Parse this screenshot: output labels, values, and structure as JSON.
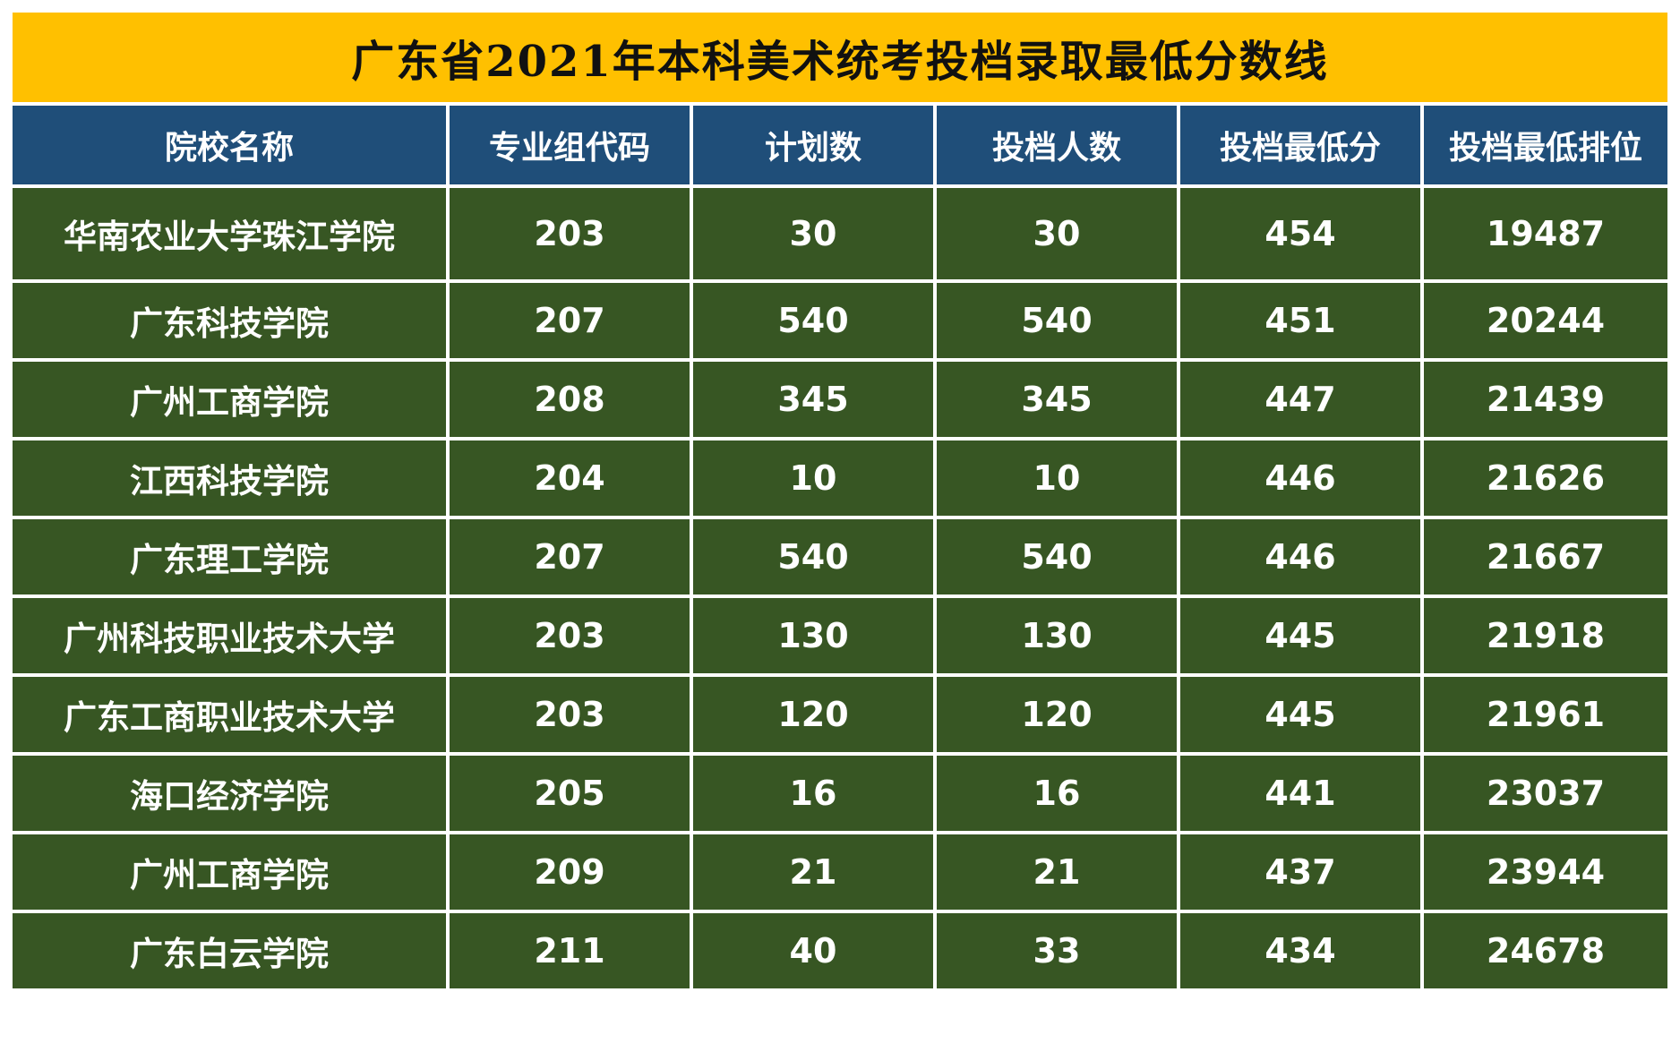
{
  "title": "广东省2021年本科美术统考投档录取最低分数线",
  "headers": [
    "院校名称",
    "专业组代码",
    "计划数",
    "投档人数",
    "投档最低分",
    "投档最低排位"
  ],
  "rows": [
    [
      "华南农业大学珠江学院",
      "203",
      "30",
      "30",
      "454",
      "19487"
    ],
    [
      "广东科技学院",
      "207",
      "540",
      "540",
      "451",
      "20244"
    ],
    [
      "广州工商学院",
      "208",
      "345",
      "345",
      "447",
      "21439"
    ],
    [
      "江西科技学院",
      "204",
      "10",
      "10",
      "446",
      "21626"
    ],
    [
      "广东理工学院",
      "207",
      "540",
      "540",
      "446",
      "21667"
    ],
    [
      "广州科技职业技术大学",
      "203",
      "130",
      "130",
      "445",
      "21918"
    ],
    [
      "广东工商职业技术大学",
      "203",
      "120",
      "120",
      "445",
      "21961"
    ],
    [
      "海口经济学院",
      "205",
      "16",
      "16",
      "441",
      "23037"
    ],
    [
      "广州工商学院",
      "209",
      "21",
      "21",
      "437",
      "23944"
    ],
    [
      "广东白云学院",
      "211",
      "40",
      "33",
      "434",
      "24678"
    ]
  ],
  "colors": {
    "title_background": "#ffc000",
    "header_background": "#1f4e79",
    "row_background": "#375623",
    "cell_text": "#ffffff"
  }
}
